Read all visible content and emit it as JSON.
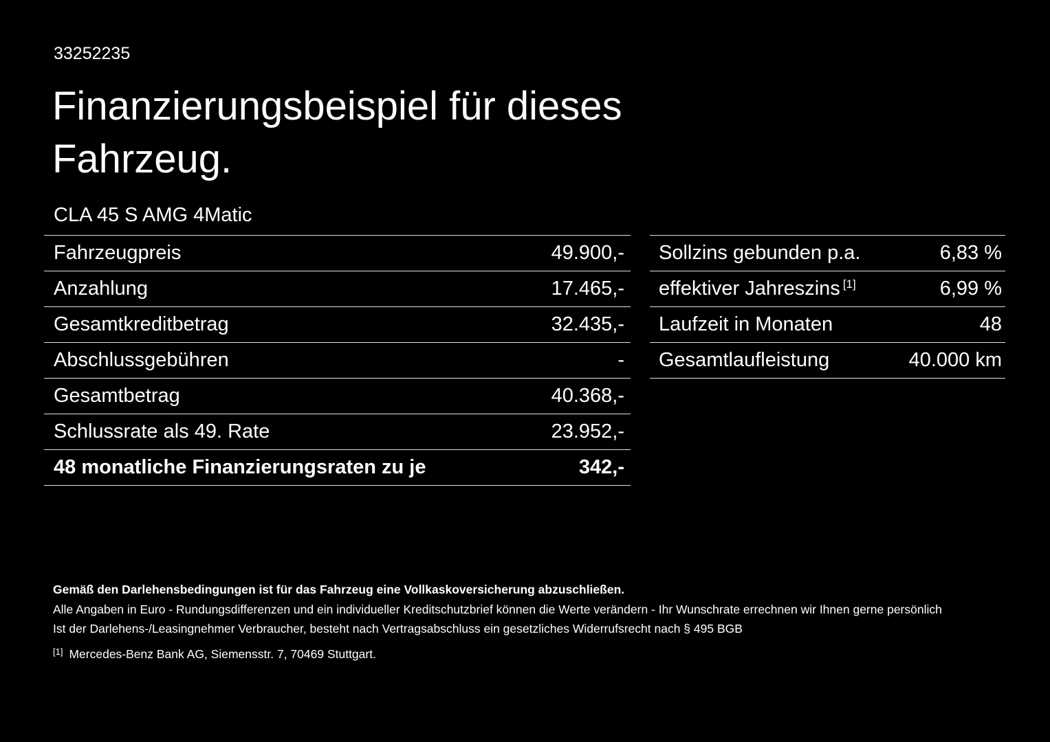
{
  "page": {
    "id_number": "33252235",
    "title_line1": "Finanzierungsbeispiel für dieses",
    "title_line2": "Fahrzeug.",
    "vehicle_name": "CLA 45 S AMG 4Matic"
  },
  "colors": {
    "background": "#000000",
    "text": "#ffffff",
    "divider": "#e3e3e3"
  },
  "left_table": {
    "rows": [
      {
        "label": "Fahrzeugpreis",
        "value": "49.900,-"
      },
      {
        "label": "Anzahlung",
        "value": "17.465,-"
      },
      {
        "label": "Gesamtkreditbetrag",
        "value": "32.435,-"
      },
      {
        "label": "Abschlussgebühren",
        "value": "-"
      },
      {
        "label": "Gesamtbetrag",
        "value": "40.368,-"
      },
      {
        "label": "Schlussrate als 49. Rate",
        "value": "23.952,-"
      },
      {
        "label": "48 monatliche Finanzierungsraten zu je",
        "value": "342,-"
      }
    ]
  },
  "right_table": {
    "rows": [
      {
        "label": "Sollzins gebunden p.a.",
        "value": "6,83 %"
      },
      {
        "label": "effektiver Jahreszins",
        "superscript": "[1]",
        "value": "6,99 %"
      },
      {
        "label": "Laufzeit in Monaten",
        "value": "48"
      },
      {
        "label": "Gesamtlaufleistung",
        "value": "40.000 km"
      }
    ]
  },
  "footnotes": {
    "bold_note": "Gemäß den Darlehensbedingungen ist für das Fahrzeug eine Vollkaskoversicherung abzuschließen.",
    "note1": "Alle Angaben in Euro - Rundungsdifferenzen und ein individueller Kreditschutzbrief können die Werte verändern - Ihr Wunschrate errechnen wir Ihnen gerne persönlich",
    "note2": "Ist der Darlehens-/Leasingnehmer Verbraucher, besteht nach Vertragsabschluss ein gesetzliches Widerrufsrecht nach § 495 BGB",
    "ref_marker": "[1]",
    "ref_text": "Mercedes-Benz Bank AG, Siemensstr. 7, 70469 Stuttgart."
  }
}
